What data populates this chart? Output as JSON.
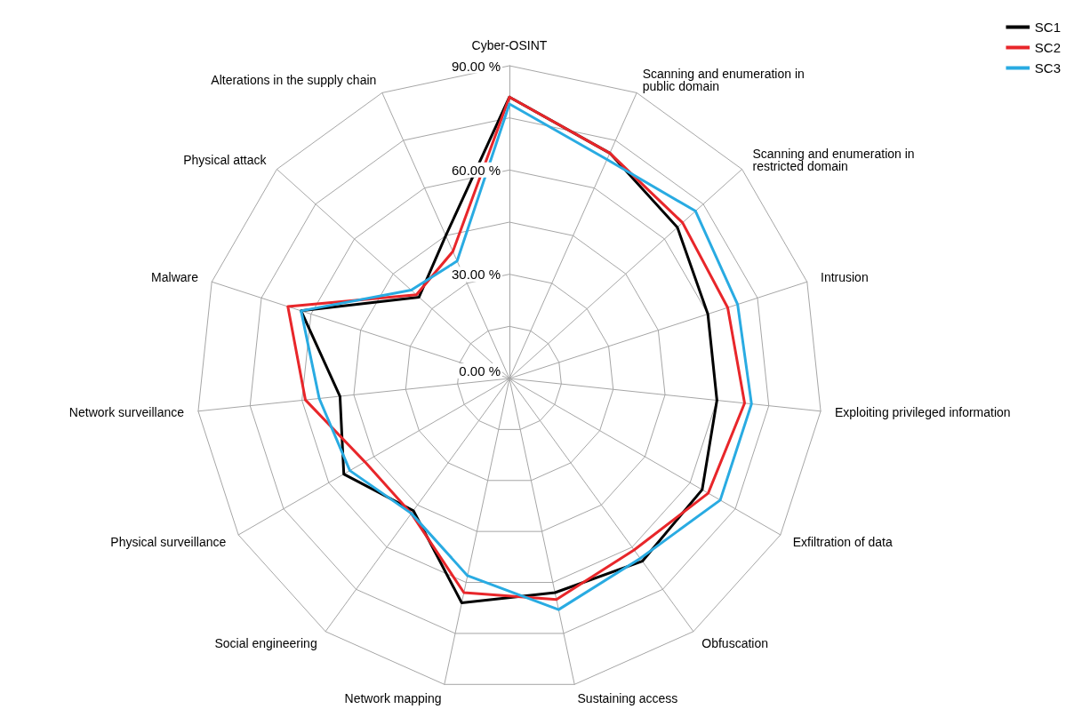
{
  "chart_data": {
    "type": "radar",
    "categories": [
      "Cyber-OSINT",
      "Scanning and enumeration in public domain",
      "Scanning and enumeration in restricted domain",
      "Intrusion",
      "Exploiting privileged information",
      "Exfiltration of data",
      "Obfuscation",
      "Sustaining access",
      "Network mapping",
      "Social engineering",
      "Physical surveillance",
      "Network surveillance",
      "Malware",
      "Physical attack",
      "Alterations in the supply chain"
    ],
    "series": [
      {
        "name": "SC1",
        "color": "#000000",
        "values": [
          81,
          71,
          65,
          60,
          60,
          64,
          65,
          63,
          66,
          47,
          55,
          49,
          63,
          35,
          45
        ]
      },
      {
        "name": "SC2",
        "color": "#e8262a",
        "values": [
          81,
          71,
          67,
          66,
          68,
          66,
          61,
          65,
          63,
          48,
          48,
          59,
          67,
          36,
          40
        ]
      },
      {
        "name": "SC3",
        "color": "#29abe2",
        "values": [
          79,
          69,
          72,
          69,
          70,
          70,
          64,
          68,
          58,
          48,
          53,
          55,
          63,
          38,
          37
        ]
      }
    ],
    "ylim": [
      0,
      90
    ],
    "yticks": [
      {
        "value": 0,
        "label": "0.00 %"
      },
      {
        "value": 30,
        "label": "30.00 %"
      },
      {
        "value": 60,
        "label": "60.00 %"
      },
      {
        "value": 90,
        "label": "90.00 %"
      }
    ],
    "grid": true,
    "legend": "top right",
    "marker": "none",
    "line_style": "solid"
  }
}
